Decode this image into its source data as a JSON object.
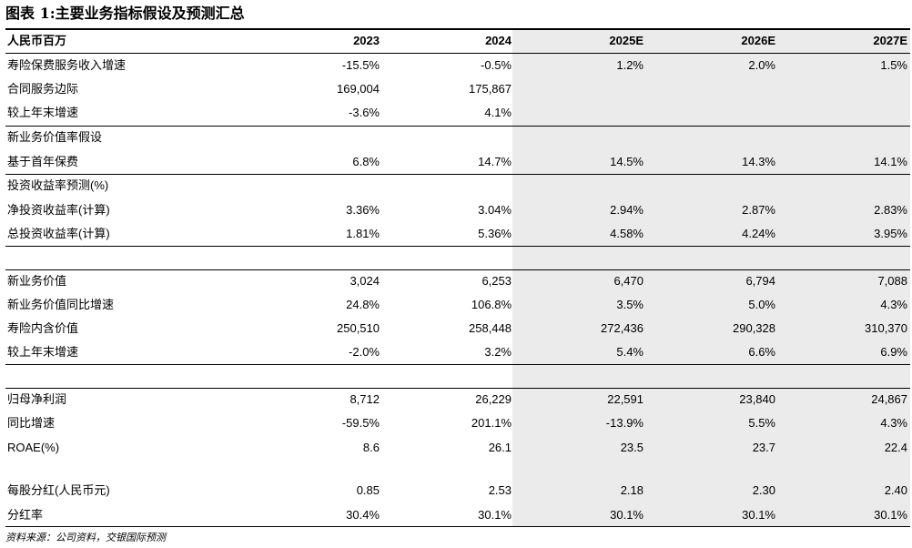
{
  "title": "图表 1:主要业务指标假设及预测汇总",
  "table": {
    "header": [
      "人民币百万",
      "2023",
      "2024",
      "2025E",
      "2026E",
      "2027E"
    ],
    "rows": [
      [
        "寿险保费服务收入增速",
        "-15.5%",
        "-0.5%",
        "1.2%",
        "2.0%",
        "1.5%"
      ],
      [
        "合同服务边际",
        "169,004",
        "175,867"
      ],
      [
        "较上年末增速",
        "-3.6%",
        "4.1%"
      ],
      [
        "新业务价值率假设"
      ],
      [
        "基于首年保费",
        "6.8%",
        "14.7%",
        "14.5%",
        "14.3%",
        "14.1%"
      ],
      [
        "投资收益率预测(%)"
      ],
      [
        "净投资收益率(计算)",
        "3.36%",
        "3.04%",
        "2.94%",
        "2.87%",
        "2.83%"
      ],
      [
        "总投资收益率(计算)",
        "1.81%",
        "5.36%",
        "4.58%",
        "4.24%",
        "3.95%"
      ],
      [
        "新业务价值",
        "3,024",
        "6,253",
        "6,470",
        "6,794",
        "7,088"
      ],
      [
        "新业务价值同比增速",
        "24.8%",
        "106.8%",
        "3.5%",
        "5.0%",
        "4.3%"
      ],
      [
        "寿险内含价值",
        "250,510",
        "258,448",
        "272,436",
        "290,328",
        "310,370"
      ],
      [
        "较上年末增速",
        "-2.0%",
        "3.2%",
        "5.4%",
        "6.6%",
        "6.9%"
      ],
      [
        "归母净利润",
        "8,712",
        "26,229",
        "22,591",
        "23,840",
        "24,867"
      ],
      [
        "同比增速",
        "-59.5%",
        "201.1%",
        "-13.9%",
        "5.5%",
        "4.3%"
      ],
      [
        "ROAE(%)",
        "8.6",
        "26.1",
        "23.5",
        "23.7",
        "22.4"
      ],
      [
        "每股分红(人民币元)",
        "0.85",
        "2.53",
        "2.18",
        "2.30",
        "2.40"
      ],
      [
        "分红率",
        "30.4%",
        "30.1%",
        "30.1%",
        "30.1%",
        "30.1%"
      ]
    ]
  },
  "source": "资料来源：公司资料，交银国际预测"
}
